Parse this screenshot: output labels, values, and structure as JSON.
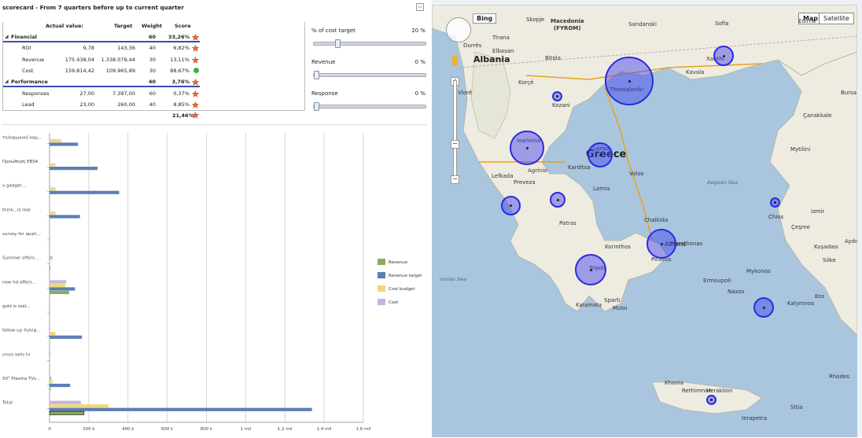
{
  "header": {
    "title": "scorecard - From 7 quarters before up to current quarter",
    "minimize": "▭"
  },
  "table": {
    "columns": [
      "Actual value:",
      "Target",
      "Weight",
      "Score"
    ],
    "rows": [
      {
        "type": "group",
        "label": "Financial",
        "actual": "",
        "target": "",
        "weight": "60",
        "score": "33,26%",
        "icon": "red-star-icon"
      },
      {
        "type": "item",
        "label": "ROI",
        "actual": "9,78",
        "target": "143,36",
        "weight": "40",
        "score": "6,82%",
        "icon": "red-star-icon"
      },
      {
        "type": "item",
        "label": "Revenue",
        "actual": "175.438,04",
        "target": "1.338.079,44",
        "weight": "30",
        "score": "13,11%",
        "icon": "red-star-icon"
      },
      {
        "type": "item",
        "label": "Cost",
        "actual": "159.814,42",
        "target": "109.965,89",
        "weight": "30",
        "score": "88,67%",
        "icon": "green-dot-icon"
      },
      {
        "type": "group",
        "label": "Performance",
        "actual": "",
        "target": "",
        "weight": "40",
        "score": "3,76%",
        "icon": "red-star-icon"
      },
      {
        "type": "item",
        "label": "Responses",
        "actual": "27,00",
        "target": "7.397,00",
        "weight": "60",
        "score": "0,37%",
        "icon": "red-star-icon"
      },
      {
        "type": "item",
        "label": "Lead",
        "actual": "23,00",
        "target": "260,00",
        "weight": "40",
        "score": "8,85%",
        "icon": "red-star-icon"
      }
    ],
    "total": "21,46%"
  },
  "sliders": [
    {
      "label": "% of cost target",
      "value": "20 %",
      "fraction": 0.2
    },
    {
      "label": "Revenue",
      "value": "0 %",
      "fraction": 0
    },
    {
      "label": "Response",
      "value": "0 %",
      "fraction": 0
    }
  ],
  "colors": {
    "revenue": "#8aad5a",
    "revenue_target": "#5b7fb5",
    "cost_budget": "#f0d878",
    "cost": "#c8b4e0",
    "accent": "#3a4fa8"
  },
  "chart_data": {
    "type": "bar",
    "orientation": "horizontal",
    "categories": [
      "τηλεφωνική καμ...",
      "Προώθηση EBS4",
      "x gadget....",
      "think...is real",
      "survey for quali...",
      "Summer offers...",
      "new hd offers...",
      "gold is real...",
      "follow up τηλεφ...",
      "cross sells tv",
      "50\" Plasma TVs...",
      "Total"
    ],
    "series": [
      {
        "name": "Revenue",
        "values": [
          0,
          0,
          0,
          0,
          0,
          3000,
          100000,
          0,
          0,
          0,
          5000,
          175438
        ]
      },
      {
        "name": "Revenue target",
        "values": [
          145000,
          245000,
          355000,
          155000,
          0,
          0,
          130000,
          0,
          165000,
          0,
          105000,
          1338079
        ]
      },
      {
        "name": "Cost budget",
        "values": [
          60000,
          30000,
          30000,
          30000,
          5000,
          5000,
          80000,
          0,
          30000,
          0,
          15000,
          300000
        ]
      },
      {
        "name": "Cost",
        "values": [
          0,
          0,
          0,
          0,
          0,
          15000,
          85000,
          0,
          0,
          5000,
          10000,
          159814
        ]
      }
    ],
    "xticks": [
      "0",
      "200 k",
      "400 k",
      "600 k",
      "800 k",
      "1 mil",
      "1.2 mil",
      "1.4 mil",
      "1.6 mil"
    ],
    "xlim": [
      0,
      1600000
    ],
    "legend": "right",
    "grid": true
  },
  "map": {
    "buttons": [
      "Map",
      "Satellite"
    ],
    "provider": "Bing",
    "countries": [
      "Albania",
      "Greece"
    ],
    "places": [
      "Macedonia",
      "(FYROM)",
      "Thessaloniki",
      "Ioannina",
      "Larisa",
      "Athens",
      "Patras",
      "Tripoli",
      "Heraklion",
      "Rethimnon",
      "Kozani",
      "Kavala",
      "Xanthi",
      "Chios",
      "Izmir",
      "Çeşme",
      "Sofia",
      "Sandanski",
      "Skopje",
      "Tirana",
      "Durrës",
      "Elbasan",
      "Korçë",
      "Vlorë",
      "Bitola",
      "Edirne",
      "Çanakkale",
      "Bursa",
      "Lamia",
      "Chalkida",
      "Piraeus",
      "Korinthos",
      "Kalamata",
      "Sparti",
      "Naxos",
      "Rhodes",
      "Kos",
      "Mytilini",
      "Lefkada",
      "Agrinio",
      "Preveza",
      "Karditsa",
      "Volos",
      "Mykonos",
      "Ermoupoli",
      "Kalymnos",
      "Sitia",
      "Ierapetra",
      "Khania",
      "Moloi",
      "Marathonas",
      "Aydın",
      "Söke",
      "Kuşadası"
    ],
    "seas": [
      "Aegean Sea",
      "Ionian Sea"
    ]
  }
}
